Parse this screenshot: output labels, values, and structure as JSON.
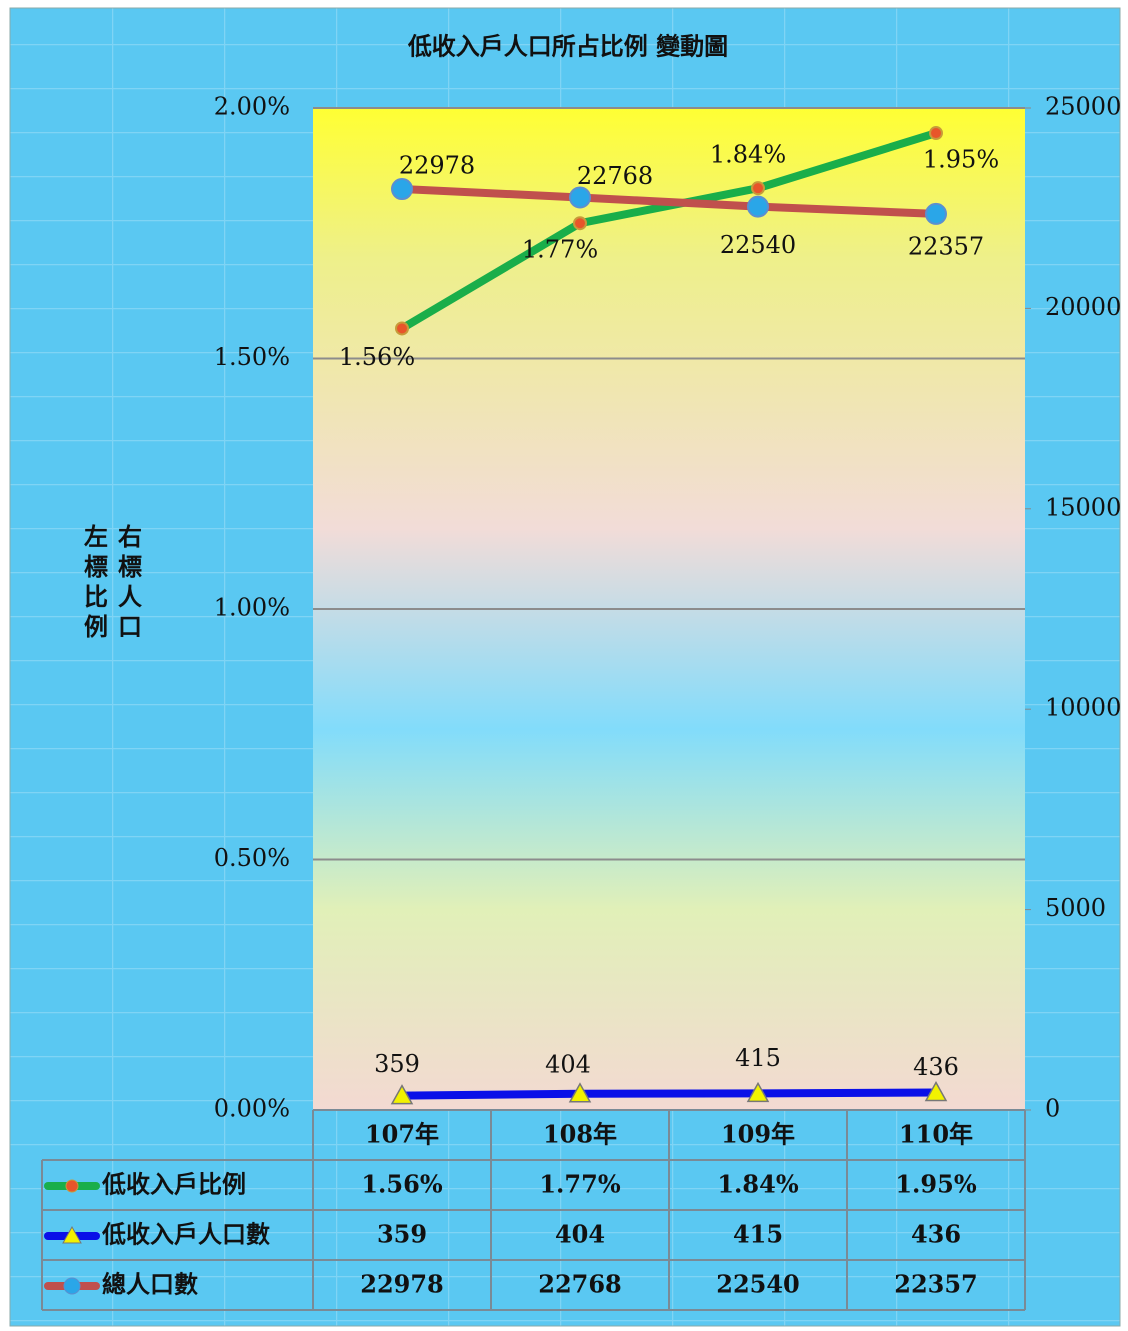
{
  "chart_data": {
    "type": "line",
    "title": "低收入戶人口所占比例 變動圖",
    "y_label": "左標比例",
    "y2_label": "右標人口",
    "categories": [
      "107年",
      "108年",
      "109年",
      "110年"
    ],
    "series": [
      {
        "name": "低收入戶比例",
        "color": "#1aae4a",
        "axis": "y",
        "values": [
          1.56,
          1.77,
          1.84,
          1.95
        ],
        "value_labels": [
          "1.56%",
          "1.77%",
          "1.84%",
          "1.95%"
        ]
      },
      {
        "name": "低收入戶人口數",
        "color": "#0a10e8",
        "axis": "y2",
        "values": [
          359,
          404,
          415,
          436
        ]
      },
      {
        "name": "總人口數",
        "color": "#c0504d",
        "axis": "y2",
        "values": [
          22978,
          22768,
          22540,
          22357
        ]
      }
    ],
    "ylim": [
      0,
      2
    ],
    "yticks": [
      {
        "value": 0,
        "label": "0.00%"
      },
      {
        "value": 0.5,
        "label": "0.50%"
      },
      {
        "value": 1,
        "label": "1.00%"
      },
      {
        "value": 1.5,
        "label": "1.50%"
      },
      {
        "value": 2,
        "label": "2.00%"
      }
    ],
    "y2lim": [
      0,
      25000
    ],
    "y2ticks": [
      0,
      5000,
      10000,
      15000,
      20000,
      25000
    ],
    "grid": true
  }
}
